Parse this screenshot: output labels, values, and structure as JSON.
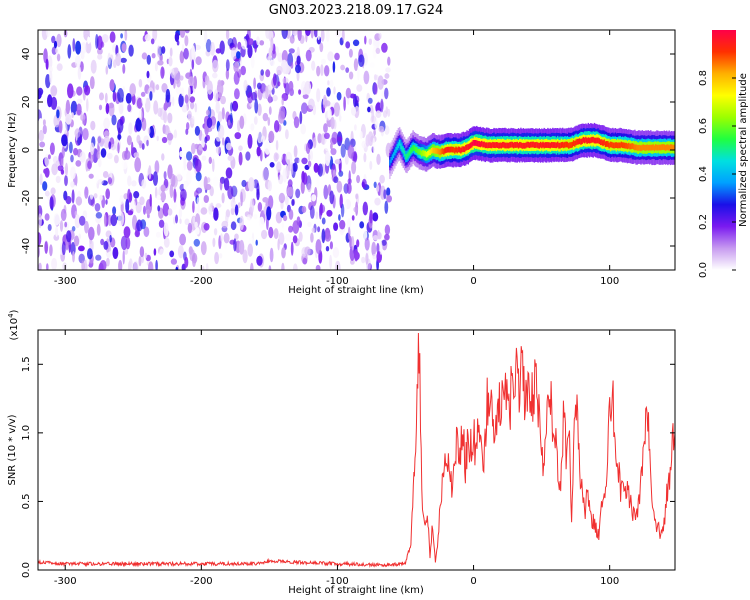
{
  "title": "GN03.2023.218.09.17.G24",
  "chart_data": [
    {
      "type": "heatmap",
      "xlabel": "Height of straight line (km)",
      "ylabel": "Frequency (Hz)",
      "xlim": [
        -320,
        148
      ],
      "ylim": [
        -50,
        50
      ],
      "xticks": [
        -300,
        -200,
        -100,
        0,
        100
      ],
      "yticks": [
        -40,
        -20,
        0,
        20,
        40
      ],
      "grid": false,
      "noise_region": {
        "x": [
          -320,
          -62
        ],
        "y": [
          -50,
          50
        ],
        "level": [
          0.0,
          0.3
        ]
      },
      "signal_band": {
        "x": [
          -62,
          -55,
          -50,
          -45,
          -40,
          -35,
          -30,
          -25,
          -20,
          -15,
          -10,
          -5,
          0,
          10,
          20,
          40,
          60,
          70,
          80,
          90,
          100,
          110,
          120,
          148
        ],
        "center": [
          -5,
          3,
          -3,
          1,
          -1,
          -2,
          0,
          -1,
          0,
          0,
          0,
          1,
          3,
          2,
          2,
          2,
          2,
          2,
          4,
          4,
          2,
          2,
          1,
          1
        ],
        "peak_amplitude": [
          0.35,
          0.45,
          0.5,
          0.55,
          0.6,
          0.7,
          0.8,
          0.85,
          0.95,
          0.9,
          0.95,
          0.95,
          1.0,
          0.95,
          0.95,
          0.95,
          0.95,
          0.9,
          0.95,
          0.95,
          0.9,
          0.9,
          0.85,
          0.85
        ]
      },
      "colorbar": {
        "label": "Normalized spectral amplitude",
        "range": [
          0,
          1
        ],
        "ticks": [
          "0.0",
          "0.2",
          "0.4",
          "0.6",
          "0.8"
        ],
        "colors": [
          "#ffffff",
          "#c79af0",
          "#7a1af0",
          "#1a10e8",
          "#00a0ff",
          "#00e0e0",
          "#20ff40",
          "#9cff00",
          "#ffff00",
          "#ffb000",
          "#ff3000",
          "#ff0048"
        ]
      }
    },
    {
      "type": "line",
      "xlabel": "Height of straight line (km)",
      "ylabel": "SNR (10 * v/v)",
      "multiplier": "(x10",
      "multiplier_exp": "4",
      "multiplier_close": ")",
      "xlim": [
        -320,
        148
      ],
      "ylim": [
        0.0,
        1.75
      ],
      "xticks": [
        -300,
        -200,
        -100,
        0,
        100
      ],
      "yticks": [
        0.0,
        0.5,
        1.0,
        1.5
      ],
      "ytick_labels": [
        "0.0",
        "0.5",
        "1.0",
        "1.5"
      ],
      "grid": false,
      "color": "#f03030",
      "series": [
        {
          "x": [
            -320,
            -300,
            -250,
            -200,
            -160,
            -150,
            -100,
            -60,
            -50,
            -46,
            -43,
            -41,
            -40,
            -38,
            -36,
            -34,
            -32,
            -30,
            -28,
            -26,
            -24,
            -22,
            -20,
            -18,
            -16,
            -14,
            -12,
            -10,
            -8,
            -6,
            -4,
            -2,
            0,
            2,
            4,
            6,
            8,
            10,
            12,
            14,
            16,
            18,
            20,
            22,
            24,
            26,
            28,
            30,
            32,
            34,
            36,
            38,
            40,
            42,
            44,
            46,
            48,
            50,
            52,
            54,
            56,
            58,
            60,
            62,
            64,
            66,
            68,
            70,
            72,
            74,
            76,
            78,
            80,
            82,
            84,
            86,
            88,
            90,
            92,
            94,
            96,
            98,
            100,
            102,
            104,
            106,
            108,
            110,
            112,
            114,
            116,
            118,
            120,
            122,
            124,
            126,
            128,
            130,
            132,
            134,
            136,
            138,
            140,
            142,
            144,
            146,
            148
          ],
          "y": [
            0.05,
            0.04,
            0.04,
            0.04,
            0.04,
            0.06,
            0.04,
            0.03,
            0.05,
            0.2,
            0.8,
            1.5,
            1.72,
            0.6,
            0.3,
            0.45,
            0.1,
            0.35,
            0.05,
            0.25,
            0.55,
            0.7,
            0.75,
            0.85,
            0.6,
            0.9,
            0.95,
            0.85,
            1.0,
            0.75,
            0.95,
            0.9,
            1.0,
            0.85,
            1.05,
            0.95,
            0.8,
            1.3,
            1.15,
            1.25,
            0.9,
            1.3,
            1.15,
            1.4,
            1.25,
            1.1,
            1.35,
            1.2,
            1.45,
            1.3,
            1.5,
            1.1,
            1.45,
            1.2,
            1.3,
            1.45,
            1.1,
            0.95,
            0.7,
            1.25,
            1.4,
            0.95,
            1.05,
            0.65,
            0.55,
            1.15,
            0.85,
            1.05,
            0.4,
            1.0,
            1.1,
            0.7,
            0.55,
            0.45,
            0.55,
            0.4,
            0.35,
            0.3,
            0.25,
            0.45,
            0.5,
            0.75,
            1.1,
            1.25,
            1.0,
            0.75,
            0.6,
            0.55,
            0.6,
            0.55,
            0.45,
            0.4,
            0.4,
            0.55,
            0.7,
            1.0,
            1.1,
            0.75,
            0.45,
            0.3,
            0.3,
            0.25,
            0.35,
            0.55,
            0.7,
            0.9,
            1.0
          ]
        }
      ]
    }
  ]
}
